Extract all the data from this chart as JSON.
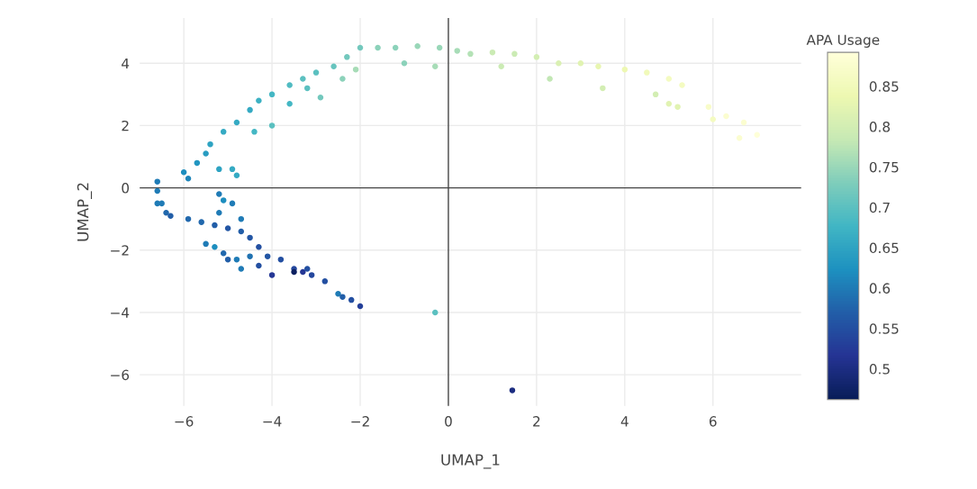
{
  "chart_data": {
    "type": "scatter",
    "xlabel": "UMAP_1",
    "ylabel": "UMAP_2",
    "clabel": "APA Usage",
    "xlim": [
      -7.0,
      8.0
    ],
    "ylim": [
      -7.0,
      5.45
    ],
    "xticks": [
      -6,
      -4,
      -2,
      0,
      2,
      4,
      6
    ],
    "yticks": [
      -6,
      -4,
      -2,
      0,
      2,
      4
    ],
    "clim": [
      0.462,
      0.892
    ],
    "cticks": [
      0.5,
      0.55,
      0.6,
      0.65,
      0.7,
      0.75,
      0.8,
      0.85
    ],
    "grid": true,
    "marker": "circle",
    "x": [
      -6.6,
      -6.5,
      -6.6,
      -6.4,
      -6.0,
      -5.9,
      -5.7,
      -5.5,
      -5.4,
      -5.1,
      -4.8,
      -4.5,
      -4.3,
      -4.0,
      -3.6,
      -3.3,
      -3.0,
      -2.6,
      -2.3,
      -2.0,
      -1.6,
      -1.2,
      -0.7,
      -0.2,
      0.2,
      0.5,
      1.0,
      1.5,
      2.0,
      2.5,
      3.0,
      3.4,
      4.0,
      4.5,
      5.0,
      5.3,
      5.9,
      6.3,
      6.7,
      7.0,
      -5.2,
      -4.9,
      -4.8,
      -4.4,
      -4.0,
      -3.6,
      -3.2,
      -2.9,
      -2.4,
      -2.1,
      -1.0,
      -0.3,
      1.2,
      2.3,
      3.5,
      4.7,
      5.0,
      5.2,
      6.0,
      6.6,
      -6.6,
      -6.3,
      -5.9,
      -5.6,
      -5.3,
      -5.0,
      -4.7,
      -4.5,
      -4.3,
      -4.1,
      -3.8,
      -3.5,
      -3.3,
      -3.1,
      -2.8,
      -2.5,
      -2.4,
      -2.2,
      -2.0,
      -3.5,
      -5.5,
      -5.3,
      -5.1,
      -5.0,
      -4.8,
      -4.5,
      -4.3,
      -4.7,
      -4.0,
      -4.7,
      -5.2,
      -5.1,
      -4.9,
      -5.2,
      -0.3,
      1.45,
      -3.2
    ],
    "values": [
      0.2,
      -0.5,
      -0.1,
      -0.8,
      0.5,
      0.3,
      0.8,
      1.1,
      1.4,
      1.8,
      2.1,
      2.5,
      2.8,
      3.0,
      3.3,
      3.5,
      3.7,
      3.9,
      4.2,
      4.5,
      4.5,
      4.5,
      4.55,
      4.5,
      4.4,
      4.3,
      4.35,
      4.3,
      4.2,
      4.0,
      4.0,
      3.9,
      3.8,
      3.7,
      3.5,
      3.3,
      2.6,
      2.3,
      2.1,
      1.7,
      0.6,
      0.6,
      0.4,
      1.8,
      2.0,
      2.7,
      3.2,
      2.9,
      3.5,
      3.8,
      4.0,
      3.9,
      3.9,
      3.5,
      3.2,
      3.0,
      2.7,
      2.6,
      2.2,
      1.6,
      -0.5,
      -0.9,
      -1.0,
      -1.1,
      -1.2,
      -1.3,
      -1.4,
      -1.6,
      -1.9,
      -2.2,
      -2.3,
      -2.6,
      -2.7,
      -2.8,
      -3.0,
      -3.4,
      -3.5,
      -3.6,
      -3.8,
      -2.7,
      -1.8,
      -1.9,
      -2.1,
      -2.3,
      -2.3,
      -2.2,
      -2.5,
      -2.6,
      -2.8,
      -1.0,
      -0.2,
      -0.4,
      -0.5,
      -0.8,
      -4.0,
      -6.5,
      -2.6
    ],
    "cvalues": [
      0.6,
      0.6,
      0.6,
      0.58,
      0.62,
      0.61,
      0.63,
      0.64,
      0.65,
      0.66,
      0.66,
      0.66,
      0.67,
      0.68,
      0.69,
      0.7,
      0.7,
      0.71,
      0.72,
      0.72,
      0.74,
      0.74,
      0.75,
      0.75,
      0.76,
      0.77,
      0.79,
      0.79,
      0.8,
      0.81,
      0.82,
      0.83,
      0.84,
      0.85,
      0.86,
      0.86,
      0.87,
      0.88,
      0.88,
      0.89,
      0.65,
      0.66,
      0.66,
      0.68,
      0.7,
      0.68,
      0.7,
      0.72,
      0.74,
      0.76,
      0.74,
      0.76,
      0.79,
      0.78,
      0.8,
      0.8,
      0.82,
      0.82,
      0.86,
      0.88,
      0.6,
      0.57,
      0.58,
      0.58,
      0.57,
      0.56,
      0.57,
      0.56,
      0.55,
      0.56,
      0.55,
      0.54,
      0.52,
      0.54,
      0.55,
      0.6,
      0.57,
      0.55,
      0.53,
      0.47,
      0.6,
      0.62,
      0.58,
      0.57,
      0.6,
      0.59,
      0.55,
      0.6,
      0.52,
      0.6,
      0.6,
      0.62,
      0.6,
      0.6,
      0.7,
      0.5,
      0.55
    ]
  }
}
